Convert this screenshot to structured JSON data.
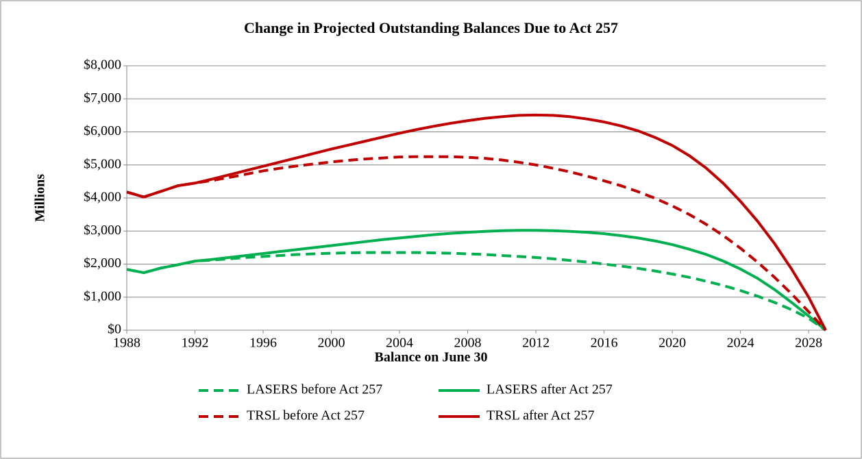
{
  "chart_data": {
    "type": "line",
    "title": "Change in Projected Outstanding Balances Due to Act 257",
    "xlabel": "Balance on June 30",
    "ylabel": "Millions",
    "x": [
      1988,
      1989,
      1990,
      1991,
      1992,
      1993,
      1994,
      1995,
      1996,
      1997,
      1998,
      1999,
      2000,
      2001,
      2002,
      2003,
      2004,
      2005,
      2006,
      2007,
      2008,
      2009,
      2010,
      2011,
      2012,
      2013,
      2014,
      2015,
      2016,
      2017,
      2018,
      2019,
      2020,
      2021,
      2022,
      2023,
      2024,
      2025,
      2026,
      2027,
      2028,
      2029
    ],
    "series": [
      {
        "name": "LASERS before Act 257",
        "color": "#00b050",
        "dashed": true,
        "values": [
          1840,
          1740,
          1880,
          1980,
          2090,
          2120,
          2160,
          2200,
          2230,
          2260,
          2290,
          2310,
          2330,
          2340,
          2350,
          2350,
          2350,
          2350,
          2340,
          2330,
          2310,
          2290,
          2260,
          2230,
          2200,
          2160,
          2110,
          2060,
          2000,
          1940,
          1870,
          1790,
          1700,
          1600,
          1480,
          1350,
          1200,
          1030,
          840,
          620,
          360,
          0
        ]
      },
      {
        "name": "LASERS after Act 257",
        "color": "#00b050",
        "dashed": false,
        "values": [
          1840,
          1740,
          1880,
          1980,
          2090,
          2140,
          2200,
          2260,
          2320,
          2380,
          2440,
          2500,
          2560,
          2620,
          2680,
          2740,
          2790,
          2840,
          2890,
          2930,
          2960,
          2990,
          3010,
          3020,
          3020,
          3010,
          2990,
          2960,
          2920,
          2860,
          2790,
          2700,
          2590,
          2450,
          2290,
          2090,
          1850,
          1570,
          1230,
          840,
          430,
          0
        ]
      },
      {
        "name": "TRSL before Act 257",
        "color": "#c00000",
        "dashed": true,
        "values": [
          4180,
          4030,
          4200,
          4370,
          4450,
          4530,
          4620,
          4720,
          4820,
          4900,
          4970,
          5030,
          5090,
          5140,
          5180,
          5210,
          5240,
          5250,
          5250,
          5250,
          5230,
          5200,
          5150,
          5080,
          5000,
          4900,
          4790,
          4660,
          4520,
          4370,
          4190,
          3990,
          3760,
          3500,
          3200,
          2860,
          2480,
          2060,
          1600,
          1100,
          560,
          0
        ]
      },
      {
        "name": "TRSL after Act 257",
        "color": "#c00000",
        "dashed": false,
        "values": [
          4180,
          4030,
          4200,
          4370,
          4450,
          4570,
          4700,
          4830,
          4960,
          5090,
          5220,
          5350,
          5480,
          5600,
          5720,
          5840,
          5960,
          6070,
          6170,
          6260,
          6340,
          6410,
          6460,
          6500,
          6510,
          6500,
          6460,
          6390,
          6300,
          6180,
          6030,
          5830,
          5590,
          5280,
          4900,
          4440,
          3900,
          3300,
          2620,
          1850,
          1000,
          0
        ]
      }
    ],
    "xlim": [
      1988,
      2029
    ],
    "xticks": [
      1988,
      1992,
      1996,
      2000,
      2004,
      2008,
      2012,
      2016,
      2020,
      2024,
      2028
    ],
    "ylim": [
      0,
      8000
    ],
    "yticks": [
      {
        "value": 0,
        "label": "$0"
      },
      {
        "value": 1000,
        "label": "$1,000"
      },
      {
        "value": 2000,
        "label": "$2,000"
      },
      {
        "value": 3000,
        "label": "$3,000"
      },
      {
        "value": 4000,
        "label": "$4,000"
      },
      {
        "value": 5000,
        "label": "$5,000"
      },
      {
        "value": 6000,
        "label": "$6,000"
      },
      {
        "value": 7000,
        "label": "$7,000"
      },
      {
        "value": 8000,
        "label": "$8,000"
      }
    ],
    "grid": true
  }
}
